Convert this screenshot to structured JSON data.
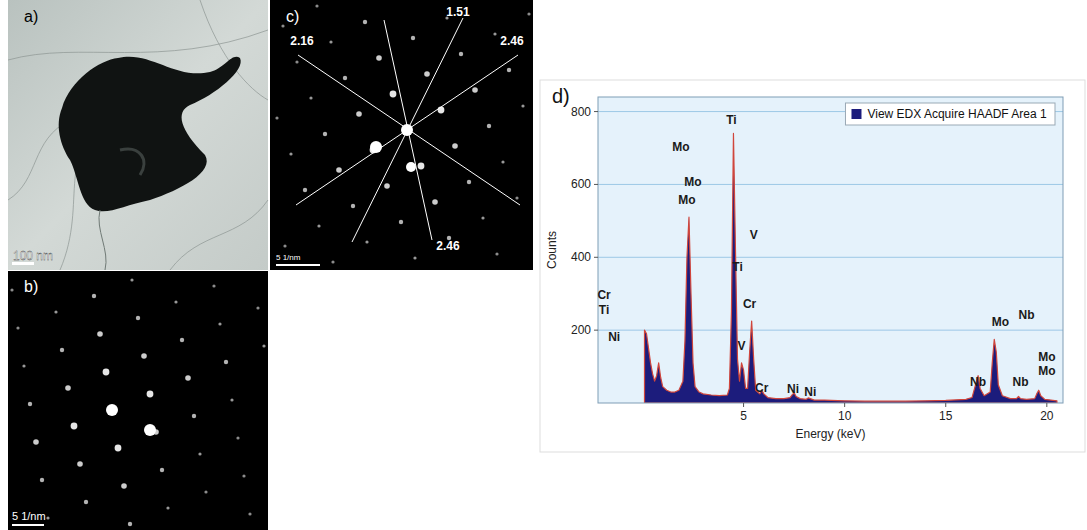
{
  "panels": [
    {
      "label": "a)",
      "scale_bar": "100 nm"
    },
    {
      "label": "b)",
      "scale_bar": "5 1/nm"
    },
    {
      "label": "c)",
      "scale_bar": "5 1/nm",
      "spacings": [
        2.16,
        1.51,
        2.46,
        2.46
      ]
    },
    {
      "label": "d)"
    }
  ],
  "chart_data": {
    "type": "area",
    "x_label": "Energy (keV)",
    "y_label": "Counts",
    "xlim": [
      -2.2,
      20.8
    ],
    "ylim": [
      0,
      840
    ],
    "xticks": [
      5,
      10,
      15,
      20
    ],
    "yticks": [
      200,
      400,
      600,
      800
    ],
    "grid": true,
    "legend": "top-right",
    "x": [
      0.1,
      0.2,
      0.3,
      0.4,
      0.5,
      0.6,
      0.7,
      0.8,
      0.9,
      1.0,
      1.2,
      1.4,
      1.6,
      1.8,
      2.0,
      2.1,
      2.2,
      2.3,
      2.4,
      2.5,
      2.6,
      2.8,
      3.0,
      3.4,
      3.8,
      4.2,
      4.3,
      4.4,
      4.5,
      4.6,
      4.7,
      4.8,
      4.9,
      5.0,
      5.1,
      5.2,
      5.3,
      5.4,
      5.5,
      5.6,
      5.8,
      5.9,
      6.0,
      6.2,
      6.6,
      7.0,
      7.3,
      7.4,
      7.5,
      7.6,
      7.8,
      8.1,
      8.2,
      8.3,
      8.5,
      9,
      10,
      11,
      12,
      13,
      14,
      15,
      16,
      16.3,
      16.5,
      16.6,
      16.7,
      16.9,
      17.2,
      17.3,
      17.4,
      17.5,
      17.6,
      17.8,
      18.2,
      18.5,
      18.6,
      18.7,
      19.0,
      19.4,
      19.5,
      19.6,
      19.7,
      19.9,
      20.2,
      20.5
    ],
    "series": [
      {
        "name": "View EDX Acquire HAADF Area 1",
        "color": "#1c1c7c",
        "values": [
          200,
          190,
          150,
          110,
          80,
          60,
          75,
          110,
          70,
          45,
          35,
          30,
          30,
          35,
          60,
          170,
          400,
          510,
          300,
          110,
          45,
          30,
          25,
          22,
          20,
          22,
          40,
          250,
          740,
          420,
          120,
          60,
          110,
          90,
          40,
          40,
          140,
          225,
          120,
          35,
          25,
          35,
          25,
          15,
          12,
          12,
          15,
          22,
          28,
          18,
          12,
          10,
          14,
          12,
          8,
          8,
          6,
          5,
          5,
          5,
          6,
          7,
          10,
          15,
          55,
          75,
          40,
          20,
          30,
          110,
          175,
          140,
          50,
          20,
          12,
          12,
          18,
          12,
          10,
          12,
          25,
          35,
          20,
          10,
          8,
          6
        ]
      }
    ],
    "annotations": [
      {
        "text": "Mo",
        "x": 1.9,
        "y": 700
      },
      {
        "text": "Mo",
        "x": 2.5,
        "y": 605
      },
      {
        "text": "Mo",
        "x": 2.2,
        "y": 555
      },
      {
        "text": "Ti",
        "x": 4.4,
        "y": 775
      },
      {
        "text": "V",
        "x": 5.5,
        "y": 460
      },
      {
        "text": "Ti",
        "x": 4.7,
        "y": 370
      },
      {
        "text": "Cr",
        "x": 5.3,
        "y": 270
      },
      {
        "text": "V",
        "x": 4.9,
        "y": 155
      },
      {
        "text": "Cr",
        "x": 5.9,
        "y": 40
      },
      {
        "text": "Cr",
        "x": -1.9,
        "y": 295
      },
      {
        "text": "Ti",
        "x": -1.9,
        "y": 253
      },
      {
        "text": "Ni",
        "x": -1.4,
        "y": 180
      },
      {
        "text": "Ni",
        "x": 7.45,
        "y": 35
      },
      {
        "text": "Ni",
        "x": 8.3,
        "y": 28
      },
      {
        "text": "Nb",
        "x": 16.6,
        "y": 55
      },
      {
        "text": "Mo",
        "x": 17.7,
        "y": 220
      },
      {
        "text": "Nb",
        "x": 19.0,
        "y": 240
      },
      {
        "text": "Nb",
        "x": 18.7,
        "y": 55
      },
      {
        "text": "Mo",
        "x": 20.0,
        "y": 125
      },
      {
        "text": "Mo",
        "x": 20.0,
        "y": 85
      }
    ]
  }
}
